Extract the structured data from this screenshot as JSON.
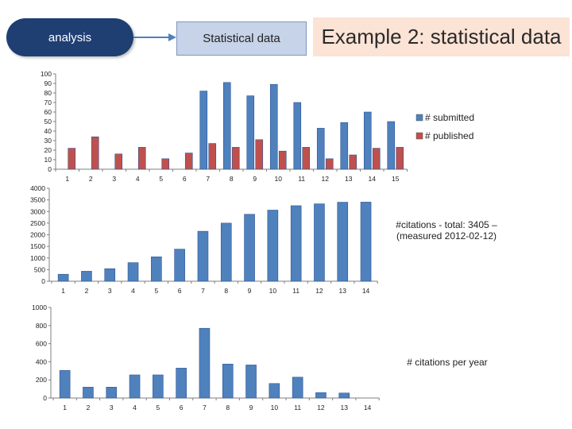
{
  "header": {
    "analysis_label": "analysis",
    "stat_label": "Statistical data",
    "title": "Example 2: statistical data"
  },
  "colors": {
    "bar_blue": "#4f81bd",
    "bar_red": "#c0504d",
    "arrow": "#4f81bd",
    "pill": "#1f3f73"
  },
  "chart_data": [
    {
      "type": "bar",
      "categories": [
        "1",
        "2",
        "3",
        "4",
        "5",
        "6",
        "7",
        "8",
        "9",
        "10",
        "11",
        "12",
        "13",
        "14",
        "15"
      ],
      "series": [
        {
          "name": "# submitted",
          "values": [
            null,
            null,
            null,
            null,
            null,
            null,
            82,
            91,
            77,
            89,
            70,
            43,
            49,
            60,
            50
          ],
          "color": "#4f81bd"
        },
        {
          "name": "# published",
          "values": [
            22,
            34,
            16,
            23,
            11,
            17,
            27,
            23,
            31,
            19,
            23,
            11,
            15,
            22,
            23
          ],
          "color": "#c0504d"
        }
      ],
      "yticks": [
        0,
        10,
        20,
        30,
        40,
        50,
        60,
        70,
        80,
        90,
        100
      ],
      "ylim": [
        0,
        100
      ],
      "legend": "right"
    },
    {
      "type": "bar",
      "categories": [
        "1",
        "2",
        "3",
        "4",
        "5",
        "6",
        "7",
        "8",
        "9",
        "10",
        "11",
        "12",
        "13",
        "14"
      ],
      "series": [
        {
          "values": [
            300,
            430,
            540,
            800,
            1050,
            1380,
            2150,
            2500,
            2880,
            3060,
            3250,
            3330,
            3400,
            3405
          ],
          "color": "#4f81bd"
        }
      ],
      "yticks": [
        0,
        500,
        1000,
        1500,
        2000,
        2500,
        3000,
        3500,
        4000
      ],
      "ylim": [
        0,
        4000
      ],
      "annotation": [
        "#citations - total: 3405 –",
        "(measured 2012-02-12)"
      ]
    },
    {
      "type": "bar",
      "categories": [
        "1",
        "2",
        "3",
        "4",
        "5",
        "6",
        "7",
        "8",
        "9",
        "10",
        "11",
        "12",
        "13",
        "14"
      ],
      "series": [
        {
          "values": [
            305,
            120,
            120,
            255,
            255,
            330,
            770,
            375,
            365,
            160,
            230,
            60,
            55,
            null
          ],
          "color": "#4f81bd"
        }
      ],
      "yticks": [
        0,
        200,
        400,
        600,
        800,
        1000
      ],
      "ylim": [
        0,
        1000
      ],
      "annotation": [
        "# citations per year"
      ]
    }
  ]
}
